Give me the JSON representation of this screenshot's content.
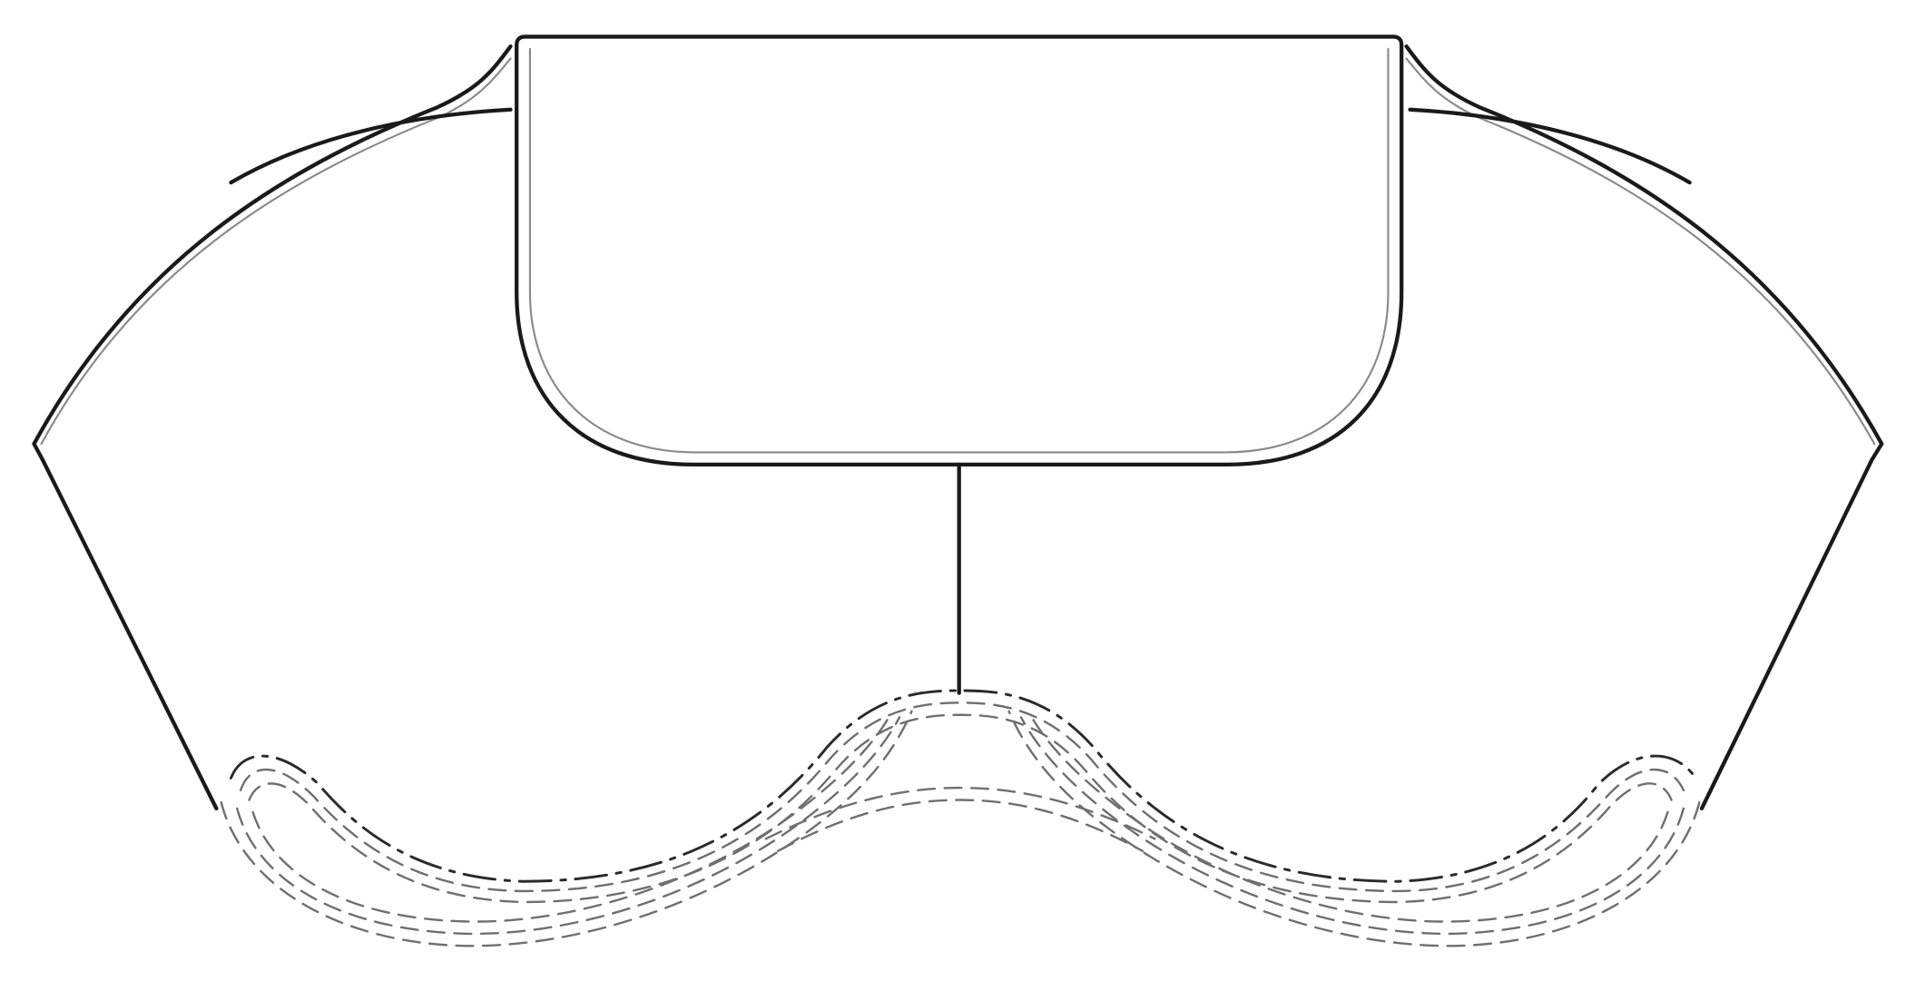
{
  "figure": {
    "type": "design-patent line drawing",
    "background": "#ffffff",
    "line_colors": {
      "solid": "#1a1a1a",
      "thin": "#8a8a8a",
      "hidden": "#6f6f6f",
      "phantom": "#2a2a2a"
    }
  }
}
